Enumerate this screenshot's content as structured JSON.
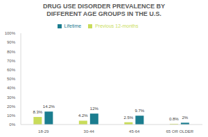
{
  "chart_data": {
    "type": "bar",
    "title": "DRUG USE DISORDER PREVALENCE BY DIFFERENT AGE GROUPS IN THE U.S.",
    "categories": [
      "18-29",
      "30-44",
      "45-64",
      "65 OR OLDER"
    ],
    "series": [
      {
        "name": "Previous 12-months",
        "color": "#c9dc5a",
        "values": [
          8.3,
          4.2,
          2.5,
          0.8
        ],
        "value_labels": [
          "8.3%",
          "4.2%",
          "2.5%",
          "0.8%"
        ]
      },
      {
        "name": "Lifetime",
        "color": "#1b7d8f",
        "values": [
          14.2,
          12,
          9.7,
          2
        ],
        "value_labels": [
          "14.2%",
          "12%",
          "9.7%",
          "2%"
        ]
      }
    ],
    "ylim": [
      0,
      100
    ],
    "yticks": [
      {
        "value": 0,
        "label": "0%"
      },
      {
        "value": 10,
        "label": "10%"
      },
      {
        "value": 20,
        "label": "20%"
      },
      {
        "value": 30,
        "label": "30%"
      },
      {
        "value": 40,
        "label": "40%"
      },
      {
        "value": 50,
        "label": "50%"
      },
      {
        "value": 60,
        "label": "60%"
      },
      {
        "value": 70,
        "label": "70%"
      },
      {
        "value": 80,
        "label": "80%"
      },
      {
        "value": 90,
        "label": "90%"
      },
      {
        "value": 100,
        "label": "100%"
      }
    ],
    "grid": false,
    "legend": "top",
    "data_labels": true
  }
}
